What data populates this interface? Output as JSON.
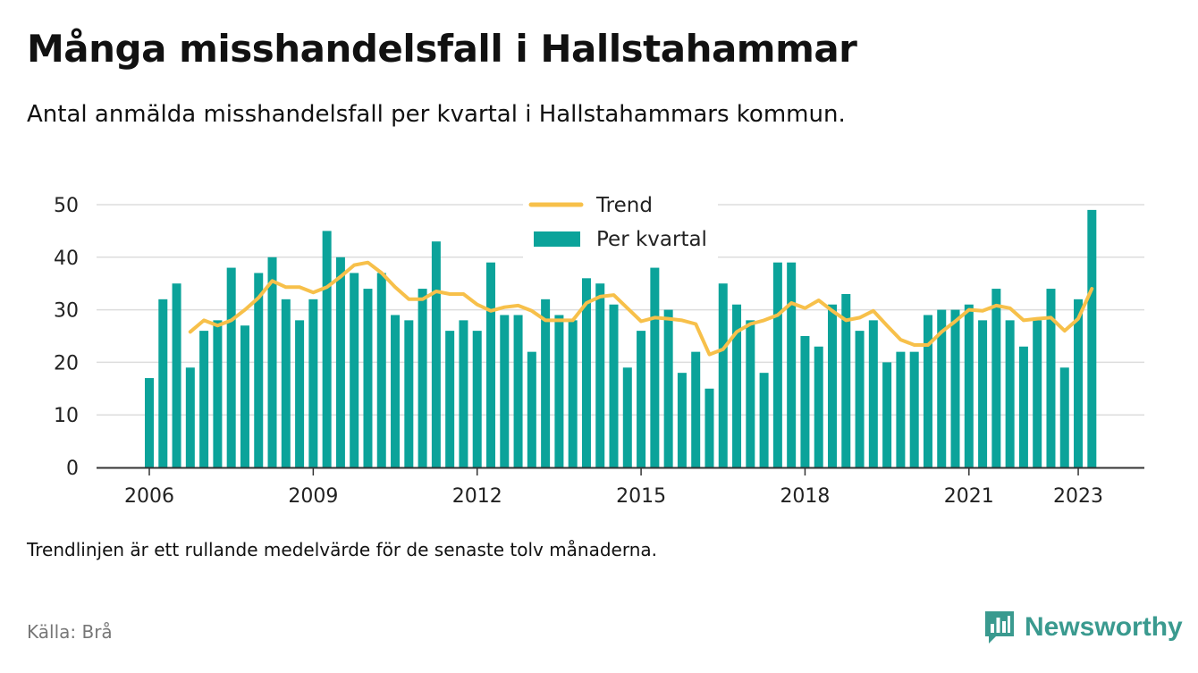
{
  "header": {
    "title": "Många misshandelsfall i Hallstahammar",
    "subtitle": "Antal anmälda misshandelsfall per kvartal i Hallstahammars kommun."
  },
  "footer": {
    "note": "Trendlinjen är ett rullande medelvärde för de senaste tolv månaderna.",
    "source": "Källa: Brå",
    "brand": "Newsworthy",
    "brand_icon": "newsworthy-logo-icon",
    "brand_color": "#3a9a8f"
  },
  "colors": {
    "bar": "#0ba39a",
    "trend": "#f7c04a",
    "grid": "#dddddd",
    "axis": "#333333"
  },
  "chart_data": {
    "type": "bar",
    "grid": true,
    "legend_position": "top-center",
    "legend": [
      {
        "name": "Trend",
        "kind": "line"
      },
      {
        "name": "Per kvartal",
        "kind": "bar"
      }
    ],
    "ylim": [
      0,
      50
    ],
    "yticks": [
      0,
      10,
      20,
      30,
      40,
      50
    ],
    "xticks": [
      2006,
      2009,
      2012,
      2015,
      2018,
      2021,
      2023
    ],
    "x_start_year": 2006,
    "series": [
      {
        "name": "Per kvartal",
        "type": "bar",
        "values": [
          17,
          32,
          35,
          19,
          26,
          28,
          38,
          27,
          37,
          40,
          32,
          28,
          32,
          45,
          40,
          37,
          34,
          37,
          29,
          28,
          34,
          43,
          26,
          28,
          26,
          39,
          29,
          29,
          22,
          32,
          29,
          28,
          36,
          35,
          31,
          19,
          26,
          38,
          30,
          18,
          22,
          15,
          35,
          31,
          28,
          18,
          39,
          39,
          25,
          23,
          31,
          33,
          26,
          28,
          20,
          22,
          22,
          29,
          30,
          30,
          31,
          28,
          34,
          28,
          23,
          28,
          34,
          19,
          32,
          49
        ]
      },
      {
        "name": "Trend",
        "type": "line",
        "start_index": 3,
        "values": [
          25.8,
          28.0,
          27.0,
          28.0,
          30.0,
          32.3,
          35.5,
          34.3,
          34.3,
          33.3,
          34.3,
          36.3,
          38.5,
          39.0,
          37.0,
          34.3,
          32.0,
          32.0,
          33.5,
          33.0,
          33.0,
          31.0,
          29.8,
          30.5,
          30.8,
          29.8,
          28.0,
          28.0,
          28.0,
          31.3,
          32.5,
          32.8,
          30.3,
          27.8,
          28.5,
          28.3,
          28.0,
          27.3,
          21.5,
          22.5,
          25.8,
          27.3,
          28.0,
          29.0,
          31.3,
          30.3,
          31.8,
          29.8,
          28.0,
          28.5,
          29.8,
          27.0,
          24.3,
          23.3,
          23.3,
          25.8,
          27.8,
          30.0,
          29.8,
          30.8,
          30.3,
          28.0,
          28.3,
          28.5,
          26.0,
          28.3,
          34.0
        ]
      }
    ]
  }
}
